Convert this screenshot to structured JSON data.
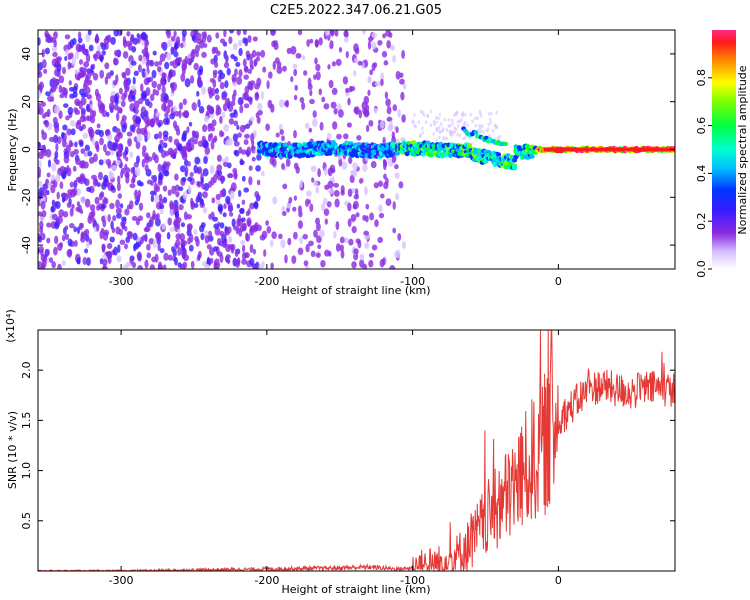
{
  "title": "C2E5.2022.347.06.21.G05",
  "chart_data": [
    {
      "type": "heatmap",
      "xlabel": "Height of straight line (km)",
      "ylabel": "Frequency (Hz)",
      "xlim": [
        -357,
        80
      ],
      "ylim": [
        -50,
        50
      ],
      "xticks": [
        -300,
        -200,
        -100,
        0
      ],
      "yticks": [
        -40,
        -20,
        0,
        20,
        40
      ],
      "colorbar": {
        "label": "Normalized spectral amplitude",
        "range": [
          0,
          1
        ],
        "ticks": [
          0.0,
          0.2,
          0.4,
          0.6,
          0.8
        ],
        "colormap": "rainbow (violet → blue → cyan → green → yellow → red)"
      },
      "description": "Scattered low-amplitude violet noise from -357 to about -105 km; a concentrated signal trace near 0 Hz starts around -205 km, drifts slightly downward near -40 km, and becomes a narrow high-amplitude (red) line near 0 Hz from about -15 km to 80 km."
    },
    {
      "type": "line",
      "xlabel": "Height of straight line (km)",
      "ylabel": "SNR (10 * v/v)",
      "y_multiplier": "(x10⁴)",
      "xlim": [
        -357,
        80
      ],
      "ylim": [
        0,
        2.4
      ],
      "xticks": [
        -300,
        -200,
        -100,
        0
      ],
      "yticks": [
        0.5,
        1.0,
        1.5,
        2.0
      ],
      "series": [
        {
          "color": "#e53935",
          "x": [
            -357,
            -300,
            -250,
            -200,
            -150,
            -130,
            -110,
            -100,
            -90,
            -80,
            -70,
            -60,
            -50,
            -40,
            -30,
            -20,
            -10,
            0,
            10,
            20,
            30,
            40,
            50,
            60,
            70,
            80
          ],
          "y": [
            0.0,
            0.0,
            0.01,
            0.02,
            0.03,
            0.04,
            0.02,
            0.03,
            0.06,
            0.08,
            0.15,
            0.28,
            0.5,
            0.65,
            0.85,
            1.05,
            1.25,
            1.5,
            1.65,
            1.8,
            1.85,
            1.8,
            1.78,
            1.82,
            1.82,
            1.8
          ]
        }
      ]
    }
  ]
}
